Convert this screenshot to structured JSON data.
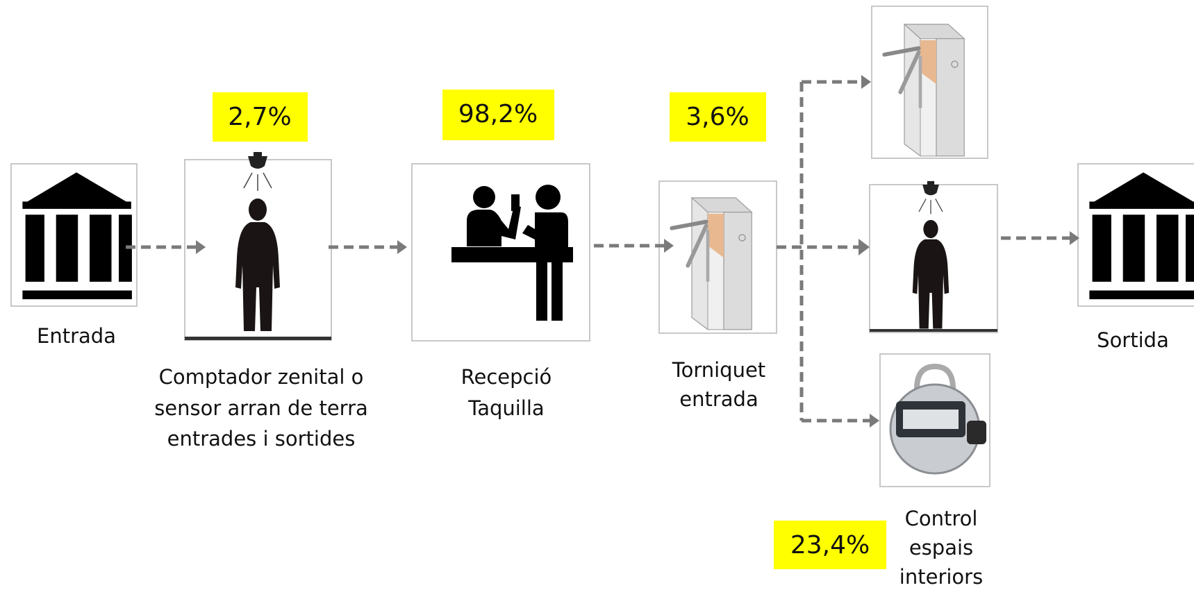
{
  "nodes": [
    {
      "label": [
        "Entrada"
      ]
    },
    {
      "label": [
        "Comptador zenital o",
        "sensor arran de terra",
        "entrades i sortides"
      ],
      "percentage": "2,7%"
    },
    {
      "label": [
        "Recepció",
        "Taquilla"
      ],
      "percentage": "98,2%"
    },
    {
      "label": [
        "Torniquet",
        "entrada"
      ],
      "percentage": "3,6%"
    },
    {
      "label": [
        "Control",
        "espais",
        "interiors"
      ],
      "percentage": "23,4%"
    },
    {
      "label": [
        "Sortida"
      ]
    }
  ]
}
